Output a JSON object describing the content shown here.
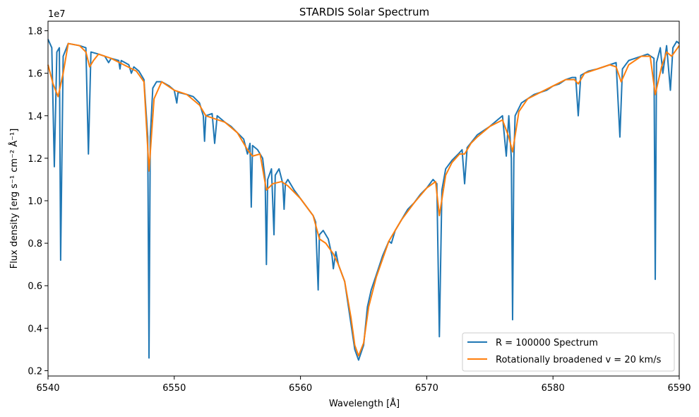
{
  "chart_data": {
    "type": "line",
    "title": "STARDIS Solar Spectrum",
    "xlabel": "Wavelength [Å]",
    "ylabel": "Flux density [erg s⁻¹ cm⁻² Å⁻¹]",
    "y_scale_label": "1e7",
    "xlim": [
      6540,
      6590
    ],
    "ylim": [
      0.175,
      1.845
    ],
    "y_multiplier": 10000000,
    "xticks": [
      "6540",
      "6550",
      "6560",
      "6570",
      "6580",
      "6590"
    ],
    "yticks": [
      "0.2",
      "0.4",
      "0.6",
      "0.8",
      "1.0",
      "1.2",
      "1.4",
      "1.6",
      "1.8"
    ],
    "grid": false,
    "legend_position": "lower-right",
    "colors": {
      "spectrum": "#1f77b4",
      "broadened": "#ff7f0e"
    },
    "series": [
      {
        "name": "R = 100000 Spectrum",
        "points": [
          [
            6540.0,
            1.76
          ],
          [
            6540.3,
            1.72
          ],
          [
            6540.5,
            1.16
          ],
          [
            6540.7,
            1.7
          ],
          [
            6540.9,
            1.72
          ],
          [
            6541.0,
            0.72
          ],
          [
            6541.2,
            1.68
          ],
          [
            6541.6,
            1.74
          ],
          [
            6542.5,
            1.73
          ],
          [
            6543.0,
            1.72
          ],
          [
            6543.2,
            1.22
          ],
          [
            6543.4,
            1.7
          ],
          [
            6544.0,
            1.69
          ],
          [
            6544.5,
            1.68
          ],
          [
            6544.8,
            1.65
          ],
          [
            6545.0,
            1.67
          ],
          [
            6545.6,
            1.66
          ],
          [
            6545.7,
            1.62
          ],
          [
            6545.8,
            1.66
          ],
          [
            6546.4,
            1.64
          ],
          [
            6546.6,
            1.6
          ],
          [
            6546.8,
            1.63
          ],
          [
            6547.2,
            1.61
          ],
          [
            6547.6,
            1.57
          ],
          [
            6547.9,
            1.3
          ],
          [
            6548.0,
            0.26
          ],
          [
            6548.1,
            1.3
          ],
          [
            6548.3,
            1.53
          ],
          [
            6548.6,
            1.56
          ],
          [
            6549.0,
            1.56
          ],
          [
            6549.6,
            1.54
          ],
          [
            6550.0,
            1.52
          ],
          [
            6550.2,
            1.46
          ],
          [
            6550.3,
            1.51
          ],
          [
            6551.0,
            1.5
          ],
          [
            6551.5,
            1.49
          ],
          [
            6552.0,
            1.46
          ],
          [
            6552.3,
            1.4
          ],
          [
            6552.4,
            1.28
          ],
          [
            6552.5,
            1.4
          ],
          [
            6553.0,
            1.41
          ],
          [
            6553.2,
            1.27
          ],
          [
            6553.4,
            1.4
          ],
          [
            6554.0,
            1.37
          ],
          [
            6554.5,
            1.35
          ],
          [
            6555.0,
            1.32
          ],
          [
            6555.5,
            1.29
          ],
          [
            6555.8,
            1.22
          ],
          [
            6556.0,
            1.27
          ],
          [
            6556.1,
            0.97
          ],
          [
            6556.2,
            1.26
          ],
          [
            6556.6,
            1.24
          ],
          [
            6557.0,
            1.2
          ],
          [
            6557.2,
            1.1
          ],
          [
            6557.3,
            0.7
          ],
          [
            6557.4,
            1.1
          ],
          [
            6557.7,
            1.15
          ],
          [
            6557.9,
            0.84
          ],
          [
            6558.0,
            1.12
          ],
          [
            6558.3,
            1.15
          ],
          [
            6558.6,
            1.08
          ],
          [
            6558.7,
            0.96
          ],
          [
            6558.8,
            1.08
          ],
          [
            6559.0,
            1.1
          ],
          [
            6559.5,
            1.05
          ],
          [
            6560.0,
            1.01
          ],
          [
            6560.5,
            0.97
          ],
          [
            6561.0,
            0.93
          ],
          [
            6561.2,
            0.9
          ],
          [
            6561.4,
            0.58
          ],
          [
            6561.5,
            0.84
          ],
          [
            6561.8,
            0.86
          ],
          [
            6562.2,
            0.82
          ],
          [
            6562.5,
            0.74
          ],
          [
            6562.6,
            0.68
          ],
          [
            6562.8,
            0.76
          ],
          [
            6563.0,
            0.7
          ],
          [
            6563.5,
            0.62
          ],
          [
            6564.0,
            0.42
          ],
          [
            6564.3,
            0.3
          ],
          [
            6564.6,
            0.25
          ],
          [
            6565.0,
            0.32
          ],
          [
            6565.3,
            0.5
          ],
          [
            6565.6,
            0.58
          ],
          [
            6566.0,
            0.65
          ],
          [
            6566.5,
            0.74
          ],
          [
            6567.0,
            0.81
          ],
          [
            6567.2,
            0.8
          ],
          [
            6567.5,
            0.86
          ],
          [
            6568.0,
            0.91
          ],
          [
            6568.5,
            0.96
          ],
          [
            6569.0,
            0.99
          ],
          [
            6569.5,
            1.03
          ],
          [
            6570.0,
            1.06
          ],
          [
            6570.5,
            1.1
          ],
          [
            6570.8,
            1.08
          ],
          [
            6571.0,
            0.36
          ],
          [
            6571.2,
            1.05
          ],
          [
            6571.5,
            1.15
          ],
          [
            6572.0,
            1.19
          ],
          [
            6572.5,
            1.22
          ],
          [
            6572.8,
            1.24
          ],
          [
            6573.0,
            1.08
          ],
          [
            6573.2,
            1.25
          ],
          [
            6573.6,
            1.28
          ],
          [
            6574.0,
            1.31
          ],
          [
            6574.5,
            1.33
          ],
          [
            6575.0,
            1.35
          ],
          [
            6575.6,
            1.38
          ],
          [
            6576.0,
            1.4
          ],
          [
            6576.3,
            1.21
          ],
          [
            6576.5,
            1.4
          ],
          [
            6576.7,
            1.2
          ],
          [
            6576.8,
            0.44
          ],
          [
            6576.9,
            1.2
          ],
          [
            6577.0,
            1.4
          ],
          [
            6577.5,
            1.46
          ],
          [
            6578.0,
            1.48
          ],
          [
            6578.5,
            1.5
          ],
          [
            6579.0,
            1.51
          ],
          [
            6579.5,
            1.52
          ],
          [
            6580.0,
            1.54
          ],
          [
            6580.5,
            1.55
          ],
          [
            6581.0,
            1.57
          ],
          [
            6581.5,
            1.58
          ],
          [
            6581.8,
            1.58
          ],
          [
            6582.0,
            1.4
          ],
          [
            6582.2,
            1.59
          ],
          [
            6582.8,
            1.61
          ],
          [
            6583.5,
            1.62
          ],
          [
            6584.0,
            1.63
          ],
          [
            6584.5,
            1.64
          ],
          [
            6585.0,
            1.65
          ],
          [
            6585.3,
            1.3
          ],
          [
            6585.5,
            1.62
          ],
          [
            6586.0,
            1.66
          ],
          [
            6586.5,
            1.67
          ],
          [
            6587.0,
            1.68
          ],
          [
            6587.5,
            1.69
          ],
          [
            6588.0,
            1.67
          ],
          [
            6588.1,
            0.63
          ],
          [
            6588.2,
            1.65
          ],
          [
            6588.5,
            1.72
          ],
          [
            6588.7,
            1.6
          ],
          [
            6589.0,
            1.73
          ],
          [
            6589.3,
            1.52
          ],
          [
            6589.5,
            1.72
          ],
          [
            6589.8,
            1.75
          ],
          [
            6590.0,
            1.74
          ]
        ]
      },
      {
        "name": "Rotationally broadened v = 20 km/s",
        "points": [
          [
            6540.0,
            1.64
          ],
          [
            6540.4,
            1.55
          ],
          [
            6540.8,
            1.49
          ],
          [
            6541.2,
            1.6
          ],
          [
            6541.6,
            1.74
          ],
          [
            6542.5,
            1.73
          ],
          [
            6543.0,
            1.7
          ],
          [
            6543.3,
            1.63
          ],
          [
            6543.6,
            1.66
          ],
          [
            6544.0,
            1.69
          ],
          [
            6545.0,
            1.67
          ],
          [
            6546.0,
            1.64
          ],
          [
            6547.0,
            1.61
          ],
          [
            6547.6,
            1.56
          ],
          [
            6548.0,
            1.14
          ],
          [
            6548.4,
            1.48
          ],
          [
            6549.0,
            1.56
          ],
          [
            6550.0,
            1.52
          ],
          [
            6551.0,
            1.5
          ],
          [
            6552.0,
            1.45
          ],
          [
            6552.5,
            1.4
          ],
          [
            6553.0,
            1.39
          ],
          [
            6554.0,
            1.37
          ],
          [
            6555.0,
            1.32
          ],
          [
            6555.8,
            1.24
          ],
          [
            6556.2,
            1.21
          ],
          [
            6556.8,
            1.22
          ],
          [
            6557.3,
            1.05
          ],
          [
            6557.8,
            1.08
          ],
          [
            6558.5,
            1.09
          ],
          [
            6559.0,
            1.07
          ],
          [
            6560.0,
            1.01
          ],
          [
            6561.0,
            0.93
          ],
          [
            6561.5,
            0.82
          ],
          [
            6562.0,
            0.8
          ],
          [
            6562.6,
            0.75
          ],
          [
            6563.0,
            0.7
          ],
          [
            6563.5,
            0.62
          ],
          [
            6564.0,
            0.45
          ],
          [
            6564.3,
            0.32
          ],
          [
            6564.6,
            0.27
          ],
          [
            6565.0,
            0.33
          ],
          [
            6565.4,
            0.5
          ],
          [
            6566.0,
            0.64
          ],
          [
            6567.0,
            0.81
          ],
          [
            6568.0,
            0.91
          ],
          [
            6569.0,
            0.99
          ],
          [
            6570.0,
            1.06
          ],
          [
            6570.7,
            1.09
          ],
          [
            6571.0,
            0.93
          ],
          [
            6571.5,
            1.12
          ],
          [
            6572.0,
            1.18
          ],
          [
            6572.6,
            1.22
          ],
          [
            6573.0,
            1.22
          ],
          [
            6573.5,
            1.27
          ],
          [
            6574.0,
            1.3
          ],
          [
            6575.0,
            1.35
          ],
          [
            6576.0,
            1.38
          ],
          [
            6576.5,
            1.3
          ],
          [
            6576.8,
            1.23
          ],
          [
            6577.3,
            1.42
          ],
          [
            6578.0,
            1.48
          ],
          [
            6579.0,
            1.51
          ],
          [
            6580.0,
            1.54
          ],
          [
            6581.0,
            1.57
          ],
          [
            6581.7,
            1.57
          ],
          [
            6582.0,
            1.55
          ],
          [
            6582.5,
            1.6
          ],
          [
            6583.5,
            1.62
          ],
          [
            6584.5,
            1.64
          ],
          [
            6585.0,
            1.63
          ],
          [
            6585.4,
            1.56
          ],
          [
            6586.0,
            1.64
          ],
          [
            6587.0,
            1.68
          ],
          [
            6587.7,
            1.68
          ],
          [
            6588.1,
            1.5
          ],
          [
            6588.6,
            1.63
          ],
          [
            6589.0,
            1.7
          ],
          [
            6589.4,
            1.68
          ],
          [
            6590.0,
            1.73
          ]
        ]
      }
    ]
  }
}
